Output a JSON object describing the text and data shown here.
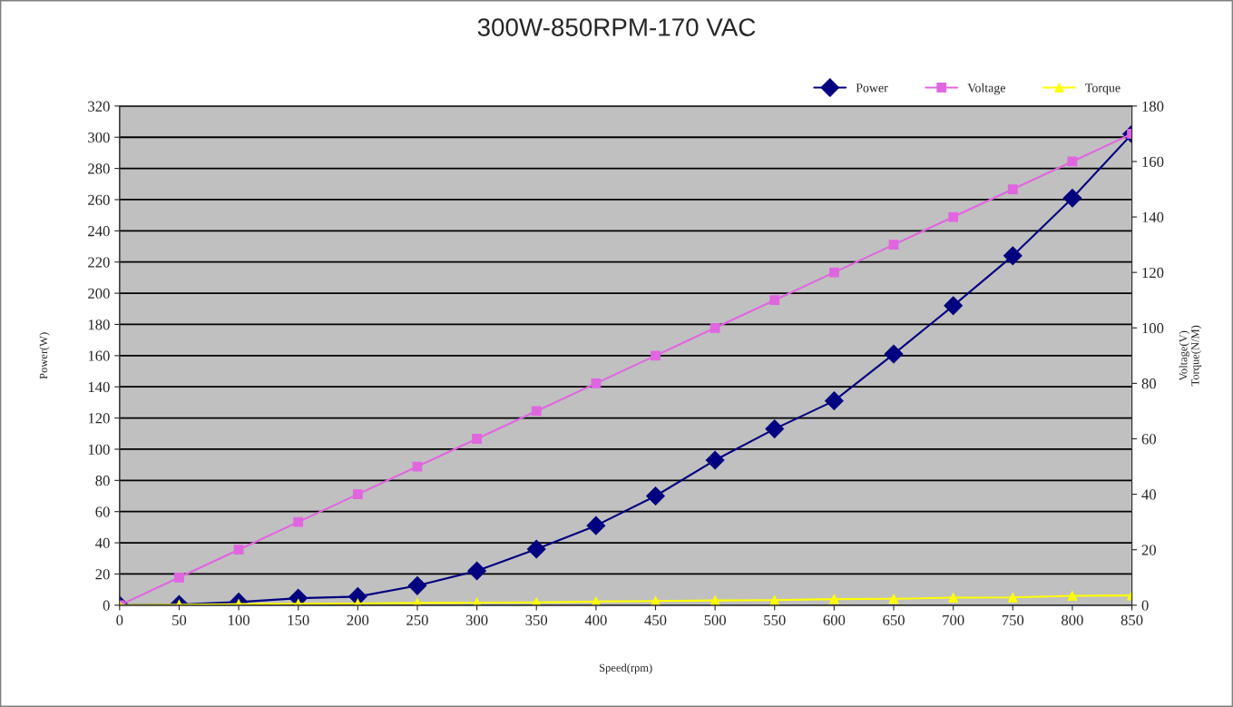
{
  "chart_data": {
    "type": "line",
    "title": "300W-850RPM-170 VAC",
    "xlabel": "Speed(rpm)",
    "ylabel": "Power(W)",
    "y2label": "Voltage(V)\nTorque(N/M)",
    "x": [
      0,
      50,
      100,
      150,
      200,
      250,
      300,
      350,
      400,
      450,
      500,
      550,
      600,
      650,
      700,
      750,
      800,
      850
    ],
    "series": [
      {
        "name": "Power",
        "color": "#000080",
        "marker": "diamond",
        "values": [
          0,
          0.5,
          2,
          4.5,
          5.5,
          12.5,
          22,
          36,
          51,
          70,
          93,
          113,
          131,
          161,
          192,
          224,
          261,
          302
        ]
      },
      {
        "name": "Voltage",
        "color": "#e066e0",
        "marker": "square",
        "axis": "y2",
        "values": [
          0,
          10,
          20,
          30,
          40,
          50,
          60,
          70,
          80,
          90,
          100,
          110,
          120,
          130,
          140,
          150,
          160,
          170
        ]
      },
      {
        "name": "Torque",
        "color": "#ffff00",
        "marker": "triangle",
        "axis": "y2",
        "values": [
          0,
          0.2,
          0.4,
          0.5,
          0.6,
          0.8,
          0.9,
          1.0,
          1.3,
          1.5,
          1.7,
          1.8,
          2.2,
          2.3,
          2.7,
          2.8,
          3.4,
          3.5
        ]
      }
    ],
    "xlim": [
      0,
      850
    ],
    "xticks": [
      0,
      50,
      100,
      150,
      200,
      250,
      300,
      350,
      400,
      450,
      500,
      550,
      600,
      650,
      700,
      750,
      800,
      850
    ],
    "ylim": [
      0,
      320
    ],
    "yticks": [
      0,
      20,
      40,
      60,
      80,
      100,
      120,
      140,
      160,
      180,
      200,
      220,
      240,
      260,
      280,
      300,
      320
    ],
    "y2lim": [
      0,
      180
    ],
    "y2ticks": [
      0,
      20,
      40,
      60,
      80,
      100,
      120,
      140,
      160,
      180
    ],
    "grid": "y",
    "legend": "top right"
  }
}
